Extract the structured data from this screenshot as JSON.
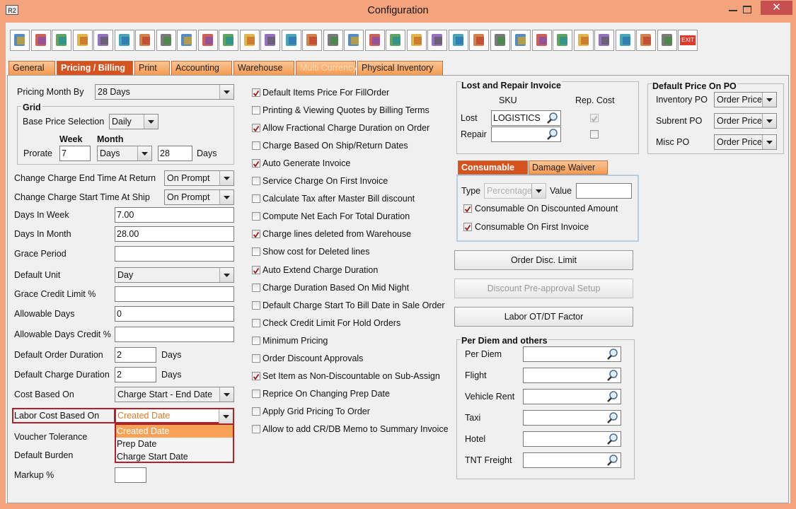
{
  "window": {
    "icon": "R2",
    "title": "Configuration"
  },
  "toolbar": {
    "exit_label": "EXIT"
  },
  "tabs": {
    "items": [
      "General",
      "Pricing / Billing",
      "Print",
      "Accounting",
      "Warehouse",
      "Multi Currency",
      "Physical Inventory"
    ],
    "active": 1,
    "disabled": [
      5
    ]
  },
  "pricing_month": {
    "label": "Pricing Month By",
    "value": "28 Days"
  },
  "grid": {
    "title": "Grid",
    "base_price_label": "Base Price Selection",
    "base_price_value": "Daily",
    "week_label": "Week",
    "month_label": "Month",
    "prorate_label": "Prorate",
    "week_value": "7",
    "month_value": "Days",
    "month_days_value": "28",
    "days_label": "Days"
  },
  "fields": [
    {
      "label": "Change Charge End Time At Return",
      "kind": "select",
      "value": "On Prompt"
    },
    {
      "label": "Change Charge Start Time At Ship",
      "kind": "select",
      "value": "On Prompt"
    },
    {
      "label": "Days In Week",
      "kind": "text",
      "value": "7.00"
    },
    {
      "label": "Days In Month",
      "kind": "text",
      "value": "28.00"
    },
    {
      "label": "Grace Period",
      "kind": "text"
    },
    {
      "label": "Default Unit",
      "kind": "select",
      "value": "Day"
    },
    {
      "label": "Grace Credit Limit %",
      "kind": "text"
    },
    {
      "label": "Allowable Days",
      "kind": "text",
      "value": "0"
    },
    {
      "label": "Allowable Days Credit %",
      "kind": "text"
    },
    {
      "label": "Default Order Duration",
      "kind": "short",
      "value": "2",
      "suffix": "Days"
    },
    {
      "label": "Default Charge Duration",
      "kind": "short",
      "value": "2",
      "suffix": "Days"
    },
    {
      "label": "Cost Based On",
      "kind": "select",
      "value": "Charge Start - End Date"
    },
    {
      "label": "Labor Cost Based On",
      "kind": "dropdown",
      "value": "Created Date",
      "options": [
        "Created Date",
        "Prep Date",
        "Charge Start Date"
      ],
      "highlighted": 0
    },
    {
      "label": "Voucher Tolerance",
      "kind": "text"
    },
    {
      "label": "Default Burden",
      "kind": "text"
    },
    {
      "label": "Markup %",
      "kind": "small"
    }
  ],
  "options": [
    {
      "label": "Default Items Price For FillOrder",
      "checked": true
    },
    {
      "label": "Printing & Viewing Quotes by Billing Terms",
      "checked": false
    },
    {
      "label": "Allow Fractional Charge Duration on Order",
      "checked": true
    },
    {
      "label": "Charge Based On Ship/Return Dates",
      "checked": false
    },
    {
      "label": "Auto Generate Invoice",
      "checked": true
    },
    {
      "label": "Service Charge On First Invoice",
      "checked": false
    },
    {
      "label": "Calculate Tax after Master Bill discount",
      "checked": false
    },
    {
      "label": "Compute Net Each For Total Duration",
      "checked": false
    },
    {
      "label": "Charge lines deleted from Warehouse",
      "checked": true
    },
    {
      "label": "Show cost for Deleted lines",
      "checked": false
    },
    {
      "label": "Auto Extend Charge Duration",
      "checked": true
    },
    {
      "label": "Charge Duration Based On Mid Night",
      "checked": false
    },
    {
      "label": "Default Charge Start To Bill Date in Sale Order",
      "checked": false
    },
    {
      "label": "Check Credit Limit For Hold Orders",
      "checked": false
    },
    {
      "label": "Minimum Pricing",
      "checked": false
    },
    {
      "label": "Order Discount Approvals",
      "checked": false
    },
    {
      "label": "Set Item as Non-Discountable on Sub-Assign",
      "checked": true
    },
    {
      "label": "Reprice On Changing Prep Date",
      "checked": false
    },
    {
      "label": "Apply Grid Pricing To Order",
      "checked": false
    },
    {
      "label": "Allow to add CR/DB Memo to Summary Invoice",
      "checked": false
    }
  ],
  "lost_repair": {
    "title": "Lost and Repair Invoice",
    "sku_header": "SKU",
    "rep_cost_header": "Rep. Cost",
    "rows": [
      {
        "label": "Lost",
        "value": "LOGISTICS",
        "rep_cost": true,
        "disabled": true
      },
      {
        "label": "Repair",
        "rep_cost": false,
        "disabled": false
      }
    ]
  },
  "consumable": {
    "tabs": [
      "Consumable",
      "Damage Waiver"
    ],
    "active": 0,
    "type_label": "Type",
    "type_value": "Percentage",
    "value_label": "Value",
    "checks": [
      {
        "label": "Consumable On Discounted Amount",
        "checked": true
      },
      {
        "label": "Consumable On First Invoice",
        "checked": true
      }
    ]
  },
  "buttons": [
    {
      "label": "Order Disc. Limit",
      "enabled": true
    },
    {
      "label": "Discount Pre-approval Setup",
      "enabled": false
    },
    {
      "label": "Labor OT/DT Factor",
      "enabled": true
    }
  ],
  "per_diem": {
    "title": "Per Diem and others",
    "items": [
      "Per Diem",
      "Flight",
      "Vehicle Rent",
      "Taxi",
      "Hotel",
      "TNT Freight"
    ]
  },
  "default_price": {
    "title": "Default Price On PO",
    "rows": [
      {
        "label": "Inventory PO",
        "value": "Order Price"
      },
      {
        "label": "Subrent PO",
        "value": "Order Price"
      },
      {
        "label": "Misc PO",
        "value": "Order Price"
      }
    ]
  }
}
